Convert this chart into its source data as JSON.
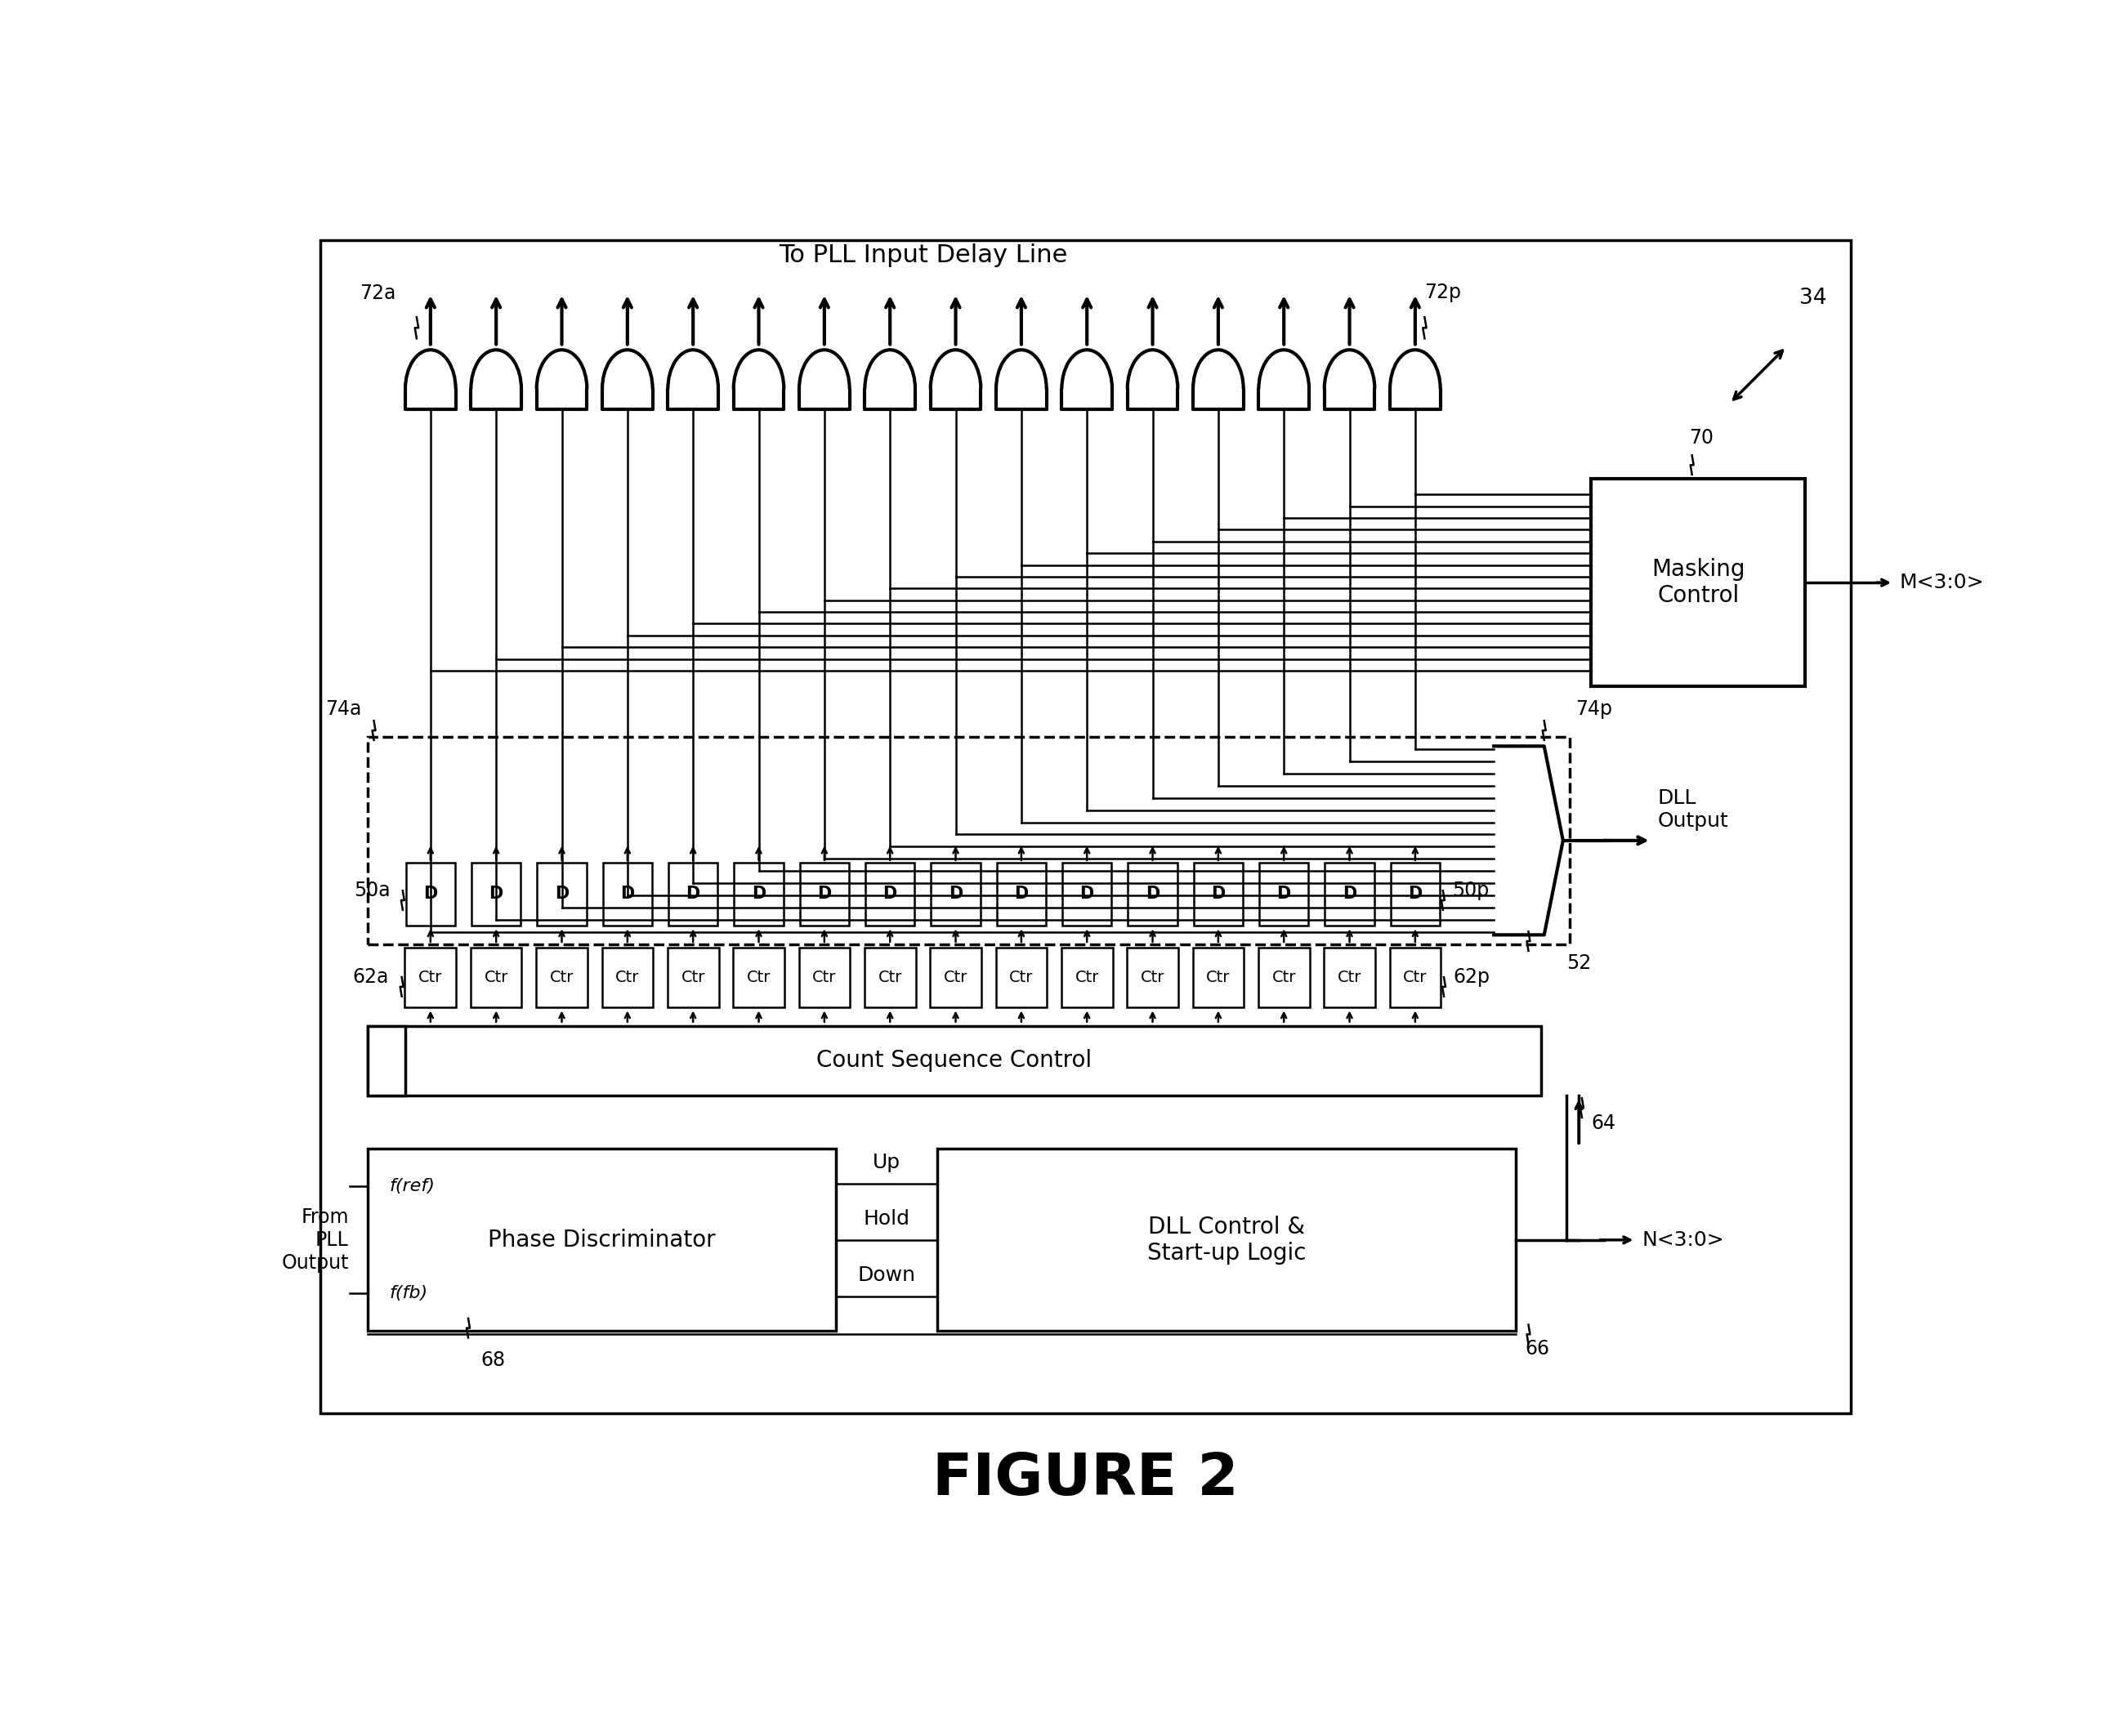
{
  "fig_width": 25.92,
  "fig_height": 21.25,
  "bg_color": "#ffffff",
  "line_color": "#000000",
  "N": 16,
  "labels": {
    "top_text": "To PLL Input Delay Line",
    "buf_left": "72a",
    "buf_right": "72p",
    "ref34": "34",
    "masking_control": "Masking\nControl",
    "masking_label": "70",
    "m_output": "M<3:0>",
    "bus_left": "74a",
    "bus_right": "74p",
    "dll_output": "DLL\nOutput",
    "mux_label": "52",
    "delay_left": "50a",
    "delay_right": "50p",
    "ctr_left": "62a",
    "ctr_right": "62p",
    "count_seq": "Count Sequence Control",
    "n64": "64",
    "from_pll": "From\nPLL\nOutput",
    "phase_disc": "Phase Discriminator",
    "f_ref": "f(ref)",
    "f_fb": "f(fb)",
    "up": "Up",
    "hold": "Hold",
    "down": "Down",
    "dll_ctrl": "DLL Control &\nStart-up Logic",
    "n68": "68",
    "n66": "66",
    "n_output": "N<3:0>",
    "figure": "FIGURE 2"
  }
}
